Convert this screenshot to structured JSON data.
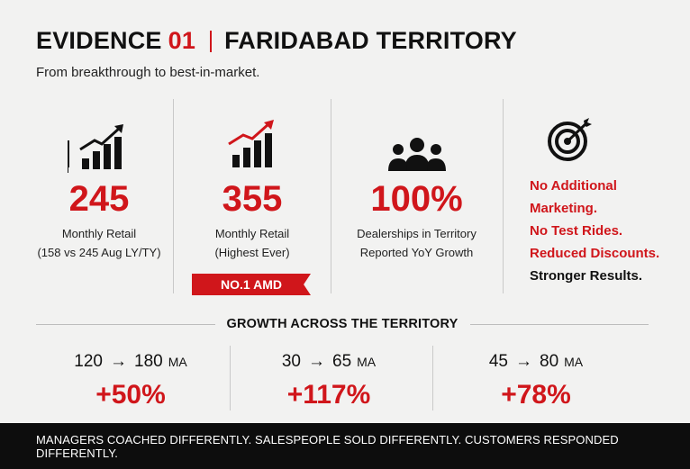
{
  "header": {
    "evidence_label": "EVIDENCE",
    "evidence_number": "01",
    "territory": "FARIDABAD TERRITORY",
    "subtitle": "From breakthrough to best-in-market."
  },
  "stats": [
    {
      "icon": "bar-chart-growth-icon",
      "value": "245",
      "line1": "Monthly Retail",
      "line2": "(158 vs 245 Aug LY/TY)"
    },
    {
      "icon": "bar-chart-growth-red-arrow-icon",
      "value": "355",
      "line1": "Monthly Retail",
      "line2": "(Highest Ever)",
      "badge": "NO.1 AMD"
    },
    {
      "icon": "people-group-icon",
      "value": "100%",
      "line1": "Dealerships in Territory",
      "line2": "Reported YoY Growth"
    }
  ],
  "side": {
    "icon": "target-icon",
    "line1": "No Additional",
    "line2": "Marketing.",
    "line3": "No Test Rides.",
    "line4": "Reduced Discounts.",
    "line5": "Stronger Results."
  },
  "growth": {
    "title": "GROWTH ACROSS THE TERRITORY",
    "items": [
      {
        "from": "120",
        "arrow": "→",
        "to": "180",
        "unit": "MA",
        "pct": "+50%"
      },
      {
        "from": "30",
        "arrow": "→",
        "to": "65",
        "unit": "MA",
        "pct": "+117%"
      },
      {
        "from": "45",
        "arrow": "→",
        "to": "80",
        "unit": "MA",
        "pct": "+78%"
      }
    ]
  },
  "footer": "MANAGERS COACHED DIFFERENTLY. SALESPEOPLE SOLD DIFFERENTLY. CUSTOMERS RESPONDED DIFFERENTLY.",
  "colors": {
    "accent": "#d0161b",
    "text": "#111111",
    "background": "#f2f2f1",
    "footer_bg": "#0d0d0d"
  }
}
